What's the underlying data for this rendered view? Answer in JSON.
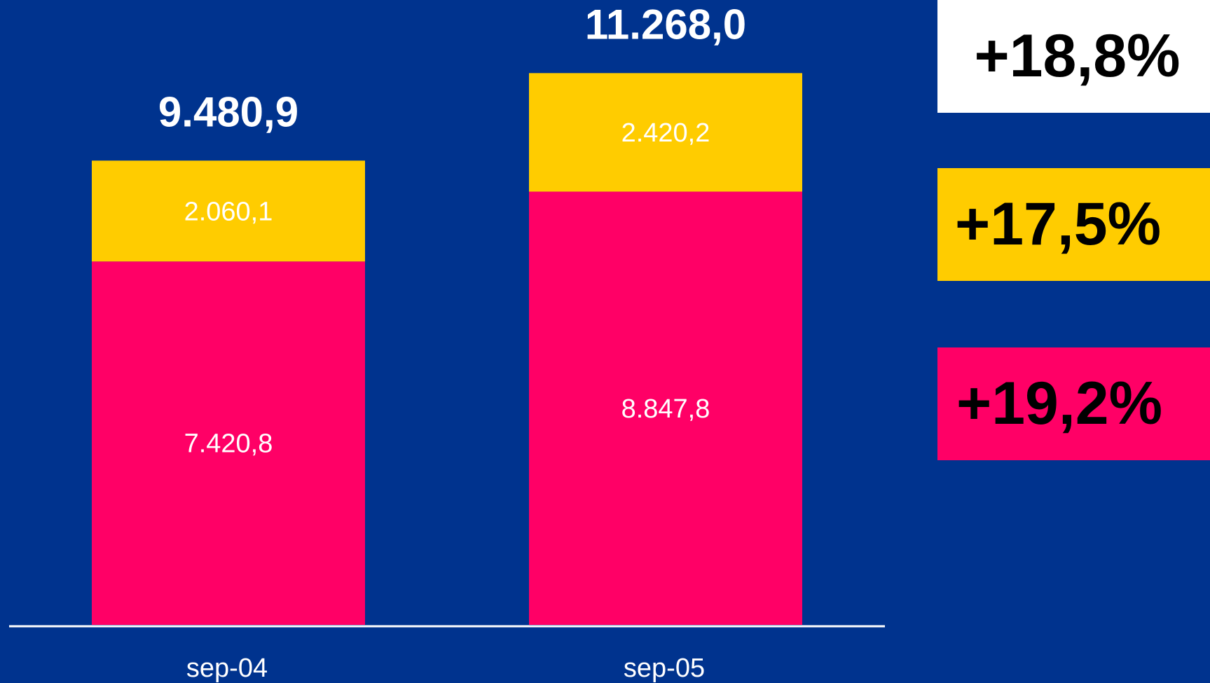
{
  "colors": {
    "background": "#00338E",
    "segment_bottom": "#FF0066",
    "segment_top": "#FFCC00",
    "label_text": "#FFFFFF",
    "badge_total": "#FFFFFF"
  },
  "chart_data": {
    "type": "bar",
    "stacked": true,
    "categories": [
      "sep-04",
      "sep-05"
    ],
    "series": [
      {
        "values": [
          7420.8,
          8847.8
        ],
        "labels": [
          "7.420,8",
          "8.847,8"
        ],
        "color": "#FF0066"
      },
      {
        "values": [
          2060.1,
          2420.2
        ],
        "labels": [
          "2.060,1",
          "2.420,2"
        ],
        "color": "#FFCC00"
      }
    ],
    "totals": [
      9480.9,
      11268.0
    ],
    "total_labels": [
      "9.480,9",
      "11.268,0"
    ],
    "ylim": [
      0,
      12000
    ],
    "grid": false,
    "title": "",
    "xlabel": "",
    "ylabel": ""
  },
  "growth_badges": {
    "total": "+18,8%",
    "top_segment": "+17,5%",
    "bottom_segment": "+19,2%"
  }
}
